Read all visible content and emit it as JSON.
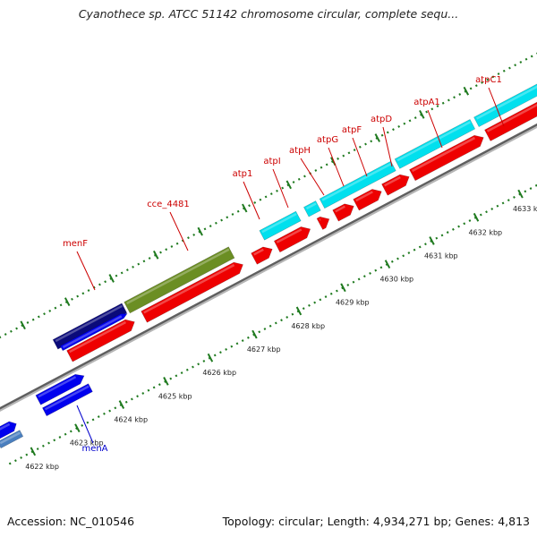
{
  "title": "Cyanothece sp. ATCC 51142 chromosome circular, complete sequ...",
  "footer": {
    "accession": "Accession: NC_010546",
    "summary": "Topology: circular; Length: 4,934,271 bp; Genes: 4,813"
  },
  "colors": {
    "red": "#ee0000",
    "cyan": "#00e0ee",
    "navy": "#0a0a7a",
    "blue": "#0000ee",
    "olive": "#6b8e23",
    "steel": "#4a7fbf",
    "label_red": "#cc0000",
    "label_blue": "#0000cc",
    "tick": "#1f7a1f"
  },
  "ticks": [
    {
      "label": "4622 kbp"
    },
    {
      "label": "4623 kbp"
    },
    {
      "label": "4624 kbp"
    },
    {
      "label": "4625 kbp"
    },
    {
      "label": "4626 kbp"
    },
    {
      "label": "4627 kbp"
    },
    {
      "label": "4628 kbp"
    },
    {
      "label": "4629 kbp"
    },
    {
      "label": "4630 kbp"
    },
    {
      "label": "4631 kbp"
    },
    {
      "label": "4632 kbp"
    },
    {
      "label": "4633 kbp"
    }
  ],
  "genes": [
    {
      "name": "menF",
      "color": "label_red"
    },
    {
      "name": "cce_4481",
      "color": "label_red"
    },
    {
      "name": "atp1",
      "color": "label_red"
    },
    {
      "name": "atpI",
      "color": "label_red"
    },
    {
      "name": "atpH",
      "color": "label_red"
    },
    {
      "name": "atpG",
      "color": "label_red"
    },
    {
      "name": "atpF",
      "color": "label_red"
    },
    {
      "name": "atpD",
      "color": "label_red"
    },
    {
      "name": "atpA1",
      "color": "label_red"
    },
    {
      "name": "atpC1",
      "color": "label_red"
    },
    {
      "name": "menA",
      "color": "label_blue"
    }
  ]
}
